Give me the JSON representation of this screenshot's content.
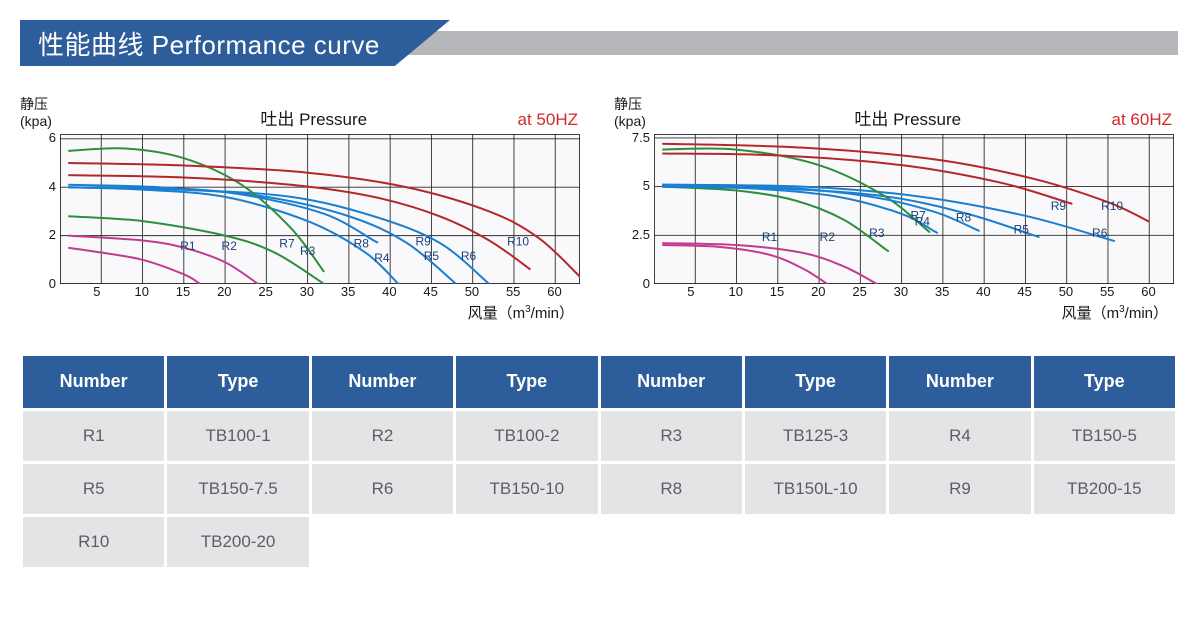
{
  "banner": {
    "title": "性能曲线 Performance curve"
  },
  "charts_common": {
    "yaxis_label_line1": "静压",
    "yaxis_label_line2": "(kpa)",
    "center_title": "吐出 Pressure",
    "xaxis_label": "风量（m³/min）",
    "grid_color": "#2c2c2c",
    "grid_width": 0.9,
    "bg_color": "#f9f9fb",
    "line_width": 2.0,
    "label_fontsize": 12,
    "label_color": "#1b3e7b",
    "series_colors": {
      "R1": "#c23b8f",
      "R2": "#c23b8f",
      "R3": "#2d8f3d",
      "R4": "#1b7fd1",
      "R5": "#1b7fd1",
      "R6": "#1b7fd1",
      "R7": "#2d8f3d",
      "R8": "#1b7fd1",
      "R9": "#b4282a",
      "R10": "#b4282a"
    }
  },
  "chart_50": {
    "freq_label": "at 50HZ",
    "xlim": [
      0,
      63
    ],
    "ylim": [
      0,
      6.2
    ],
    "xticks": [
      5,
      10,
      15,
      20,
      25,
      30,
      35,
      40,
      45,
      50,
      55,
      60
    ],
    "yticks": [
      0,
      2.0,
      4.0,
      6.0
    ],
    "series": {
      "R1": [
        [
          1,
          1.5
        ],
        [
          5,
          1.3
        ],
        [
          10,
          1.0
        ],
        [
          15,
          0.4
        ],
        [
          17,
          0
        ]
      ],
      "R2": [
        [
          1,
          2.0
        ],
        [
          10,
          1.8
        ],
        [
          15,
          1.5
        ],
        [
          20,
          0.9
        ],
        [
          24,
          0
        ]
      ],
      "R3": [
        [
          1,
          2.8
        ],
        [
          10,
          2.6
        ],
        [
          20,
          2.0
        ],
        [
          26,
          1.3
        ],
        [
          32,
          0
        ]
      ],
      "R4": [
        [
          1,
          4.0
        ],
        [
          10,
          3.9
        ],
        [
          20,
          3.6
        ],
        [
          30,
          2.6
        ],
        [
          37,
          1.3
        ],
        [
          41,
          0
        ]
      ],
      "R5": [
        [
          1,
          4.0
        ],
        [
          15,
          3.9
        ],
        [
          25,
          3.6
        ],
        [
          35,
          2.8
        ],
        [
          42,
          1.7
        ],
        [
          48,
          0
        ]
      ],
      "R6": [
        [
          1,
          4.0
        ],
        [
          15,
          3.9
        ],
        [
          28,
          3.6
        ],
        [
          38,
          2.8
        ],
        [
          46,
          1.7
        ],
        [
          52,
          0
        ]
      ],
      "R7": [
        [
          1,
          5.5
        ],
        [
          8,
          5.6
        ],
        [
          15,
          5.2
        ],
        [
          22,
          4.1
        ],
        [
          28,
          2.3
        ],
        [
          32,
          0.5
        ]
      ],
      "R8": [
        [
          1,
          4.1
        ],
        [
          12,
          4.0
        ],
        [
          22,
          3.7
        ],
        [
          32,
          2.9
        ],
        [
          38,
          1.8
        ],
        [
          38,
          1.8
        ]
      ],
      "R9": [
        [
          1,
          4.5
        ],
        [
          15,
          4.4
        ],
        [
          28,
          4.1
        ],
        [
          38,
          3.6
        ],
        [
          46,
          2.8
        ],
        [
          52,
          1.8
        ],
        [
          57,
          0.6
        ]
      ],
      "R10": [
        [
          1,
          5.0
        ],
        [
          15,
          4.9
        ],
        [
          30,
          4.6
        ],
        [
          42,
          4.0
        ],
        [
          52,
          3.0
        ],
        [
          58,
          1.9
        ],
        [
          63,
          0.3
        ]
      ]
    },
    "curve_labels": {
      "R1": [
        15.5,
        1.4
      ],
      "R2": [
        20.5,
        1.4
      ],
      "R3": [
        30,
        1.2
      ],
      "R4": [
        39,
        0.9
      ],
      "R5": [
        45,
        1.0
      ],
      "R6": [
        49.5,
        1.0
      ],
      "R7": [
        27.5,
        1.5
      ],
      "R8": [
        36.5,
        1.5
      ],
      "R9": [
        44,
        1.6
      ],
      "R10": [
        55.5,
        1.6
      ]
    }
  },
  "chart_60": {
    "freq_label": "at 60HZ",
    "xlim": [
      0,
      63
    ],
    "ylim": [
      0,
      7.7
    ],
    "xticks": [
      5,
      10,
      15,
      20,
      25,
      30,
      35,
      40,
      45,
      50,
      55,
      60
    ],
    "yticks": [
      0,
      2.5,
      5.0,
      7.5
    ],
    "series": {
      "R1": [
        [
          1,
          2.0
        ],
        [
          8,
          1.9
        ],
        [
          14,
          1.5
        ],
        [
          18,
          0.8
        ],
        [
          21,
          0
        ]
      ],
      "R2": [
        [
          1,
          2.1
        ],
        [
          10,
          2.0
        ],
        [
          18,
          1.6
        ],
        [
          23,
          0.9
        ],
        [
          27,
          0
        ]
      ],
      "R3": [
        [
          1,
          5.0
        ],
        [
          10,
          4.8
        ],
        [
          17,
          4.3
        ],
        [
          23,
          3.3
        ],
        [
          28,
          1.8
        ],
        [
          28,
          1.8
        ]
      ],
      "R4": [
        [
          1,
          5.0
        ],
        [
          12,
          4.9
        ],
        [
          22,
          4.5
        ],
        [
          30,
          3.6
        ],
        [
          34,
          2.7
        ],
        [
          34,
          2.7
        ]
      ],
      "R5": [
        [
          1,
          5.0
        ],
        [
          15,
          4.9
        ],
        [
          28,
          4.5
        ],
        [
          38,
          3.6
        ],
        [
          46,
          2.5
        ],
        [
          46,
          2.5
        ]
      ],
      "R6": [
        [
          1,
          5.1
        ],
        [
          18,
          5.0
        ],
        [
          32,
          4.5
        ],
        [
          45,
          3.5
        ],
        [
          55,
          2.3
        ],
        [
          55,
          2.3
        ]
      ],
      "R7": [
        [
          1,
          6.9
        ],
        [
          10,
          6.9
        ],
        [
          20,
          6.1
        ],
        [
          28,
          4.5
        ],
        [
          33,
          2.8
        ],
        [
          33,
          2.8
        ]
      ],
      "R8": [
        [
          1,
          5.1
        ],
        [
          14,
          5.0
        ],
        [
          26,
          4.5
        ],
        [
          34,
          3.7
        ],
        [
          39,
          2.8
        ],
        [
          39,
          2.8
        ]
      ],
      "R9": [
        [
          1,
          6.7
        ],
        [
          15,
          6.6
        ],
        [
          30,
          6.1
        ],
        [
          42,
          5.2
        ],
        [
          50,
          4.2
        ],
        [
          50,
          4.2
        ]
      ],
      "R10": [
        [
          1,
          7.2
        ],
        [
          18,
          7.0
        ],
        [
          34,
          6.4
        ],
        [
          46,
          5.4
        ],
        [
          55,
          4.2
        ],
        [
          60,
          3.2
        ]
      ]
    },
    "curve_labels": {
      "R1": [
        14,
        2.2
      ],
      "R2": [
        21,
        2.2
      ],
      "R3": [
        27,
        2.4
      ],
      "R4": [
        32.5,
        3.0
      ],
      "R5": [
        44.5,
        2.6
      ],
      "R6": [
        54,
        2.4
      ],
      "R7": [
        32,
        3.3
      ],
      "R8": [
        37.5,
        3.2
      ],
      "R9": [
        49,
        3.8
      ],
      "R10": [
        55.5,
        3.8
      ]
    }
  },
  "table": {
    "headers": [
      "Number",
      "Type",
      "Number",
      "Type",
      "Number",
      "Type",
      "Number",
      "Type"
    ],
    "rows": [
      [
        "R1",
        "TB100-1",
        "R2",
        "TB100-2",
        "R3",
        "TB125-3",
        "R4",
        "TB150-5"
      ],
      [
        "R5",
        "TB150-7.5",
        "R6",
        "TB150-10",
        "R8",
        "TB150L-10",
        "R9",
        "TB200-15"
      ],
      [
        "R10",
        "TB200-20",
        "",
        "",
        "",
        "",
        "",
        ""
      ]
    ]
  }
}
